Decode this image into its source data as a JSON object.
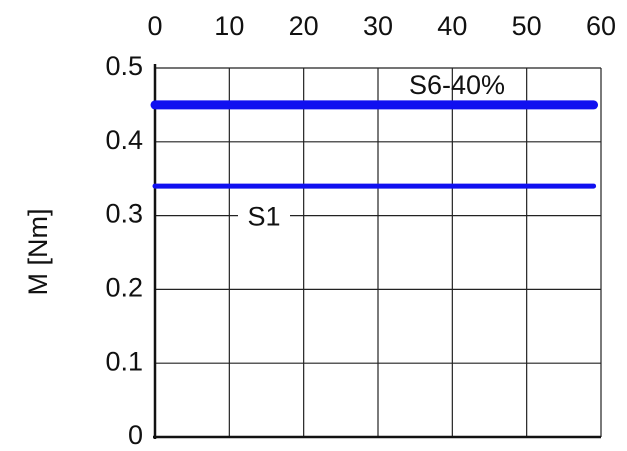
{
  "chart_data": {
    "type": "line",
    "ylabel": "M [Nm]",
    "x": [
      0,
      59
    ],
    "series": [
      {
        "name": "S6-40%",
        "color": "#1010f0",
        "values": [
          0.45,
          0.45
        ]
      },
      {
        "name": "S1",
        "color": "#1010f0",
        "values": [
          0.34,
          0.34
        ]
      }
    ],
    "xlim": [
      0,
      60
    ],
    "xticks": [
      0,
      10,
      20,
      30,
      40,
      50,
      60
    ],
    "ylim": [
      0,
      0.5
    ],
    "yticks": [
      0,
      0.1,
      0.2,
      0.3,
      0.4,
      0.5
    ],
    "grid": true,
    "xaxis_position": "top"
  }
}
